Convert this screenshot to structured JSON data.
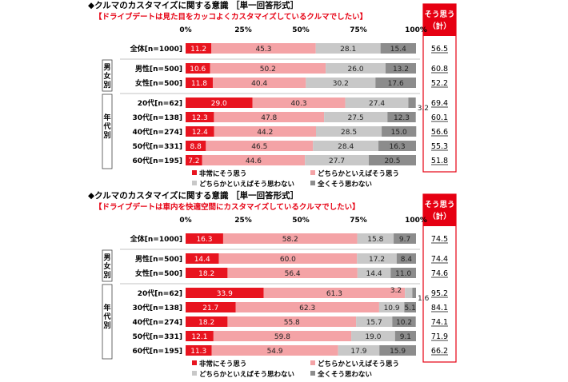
{
  "colors": {
    "very_strong": "#e8141f",
    "somewhat": "#f4a3a6",
    "somewhat_not": "#c8c8c8",
    "not_at_all": "#8c8c8c",
    "accent_red": "#e60012",
    "header_fill": "#e60012"
  },
  "legend": {
    "very_strong": "非常にそう思う",
    "somewhat": "どちらかといえばそう思う",
    "somewhat_not": "どちらかといえばそう思わない",
    "not_at_all": "全くそう思わない"
  },
  "axis_ticks": [
    "0%",
    "25%",
    "50%",
    "75%",
    "100%"
  ],
  "total_header": [
    "そう思う",
    "（計）"
  ],
  "groups": {
    "gender": "男女別",
    "age": "年代別"
  },
  "chart_data": [
    {
      "type": "bar",
      "stacked": "horizontal-100%",
      "title": "◆クルマのカスタマイズに関する意識 ［単一回答形式］",
      "subtitle": "【ドライブデートは見た目をカッコよくカスタマイズしているクルマでしたい】",
      "categories": [
        "全体[n=1000]",
        "男性[n=500]",
        "女性[n=500]",
        "20代[n=62]",
        "30代[n=138]",
        "40代[n=274]",
        "50代[n=331]",
        "60代[n=195]"
      ],
      "series": [
        {
          "name": "非常にそう思う",
          "values": [
            11.2,
            10.6,
            11.8,
            29.0,
            12.3,
            12.4,
            8.8,
            7.2
          ]
        },
        {
          "name": "どちらかといえばそう思う",
          "values": [
            45.3,
            50.2,
            40.4,
            40.3,
            47.8,
            44.2,
            46.5,
            44.6
          ]
        },
        {
          "name": "どちらかといえばそう思わない",
          "values": [
            28.1,
            26.0,
            30.2,
            27.4,
            27.5,
            28.5,
            28.4,
            27.7
          ]
        },
        {
          "name": "全くそう思わない",
          "values": [
            15.4,
            13.2,
            17.6,
            3.2,
            12.3,
            15.0,
            16.3,
            20.5
          ]
        }
      ],
      "totals": [
        "56.5",
        "60.8",
        "52.2",
        "69.4",
        "60.1",
        "56.6",
        "55.3",
        "51.8"
      ],
      "xlim": [
        0,
        100
      ]
    },
    {
      "type": "bar",
      "stacked": "horizontal-100%",
      "title": "◆クルマのカスタマイズに関する意識 ［単一回答形式］",
      "subtitle": "【ドライブデートは車内を快適空間にカスタマイズしているクルマでしたい】",
      "categories": [
        "全体[n=1000]",
        "男性[n=500]",
        "女性[n=500]",
        "20代[n=62]",
        "30代[n=138]",
        "40代[n=274]",
        "50代[n=331]",
        "60代[n=195]"
      ],
      "series": [
        {
          "name": "非常にそう思う",
          "values": [
            16.3,
            14.4,
            18.2,
            33.9,
            21.7,
            18.2,
            12.1,
            11.3
          ]
        },
        {
          "name": "どちらかといえばそう思う",
          "values": [
            58.2,
            60.0,
            56.4,
            61.3,
            62.3,
            55.8,
            59.8,
            54.9
          ]
        },
        {
          "name": "どちらかといえばそう思わない",
          "values": [
            15.8,
            17.2,
            14.4,
            3.2,
            10.9,
            15.7,
            19.0,
            17.9
          ]
        },
        {
          "name": "全くそう思わない",
          "values": [
            9.7,
            8.4,
            11.0,
            1.6,
            5.1,
            10.2,
            9.1,
            15.9
          ]
        }
      ],
      "totals": [
        "74.5",
        "74.4",
        "74.6",
        "95.2",
        "84.1",
        "74.1",
        "71.9",
        "66.2"
      ],
      "xlim": [
        0,
        100
      ]
    }
  ]
}
